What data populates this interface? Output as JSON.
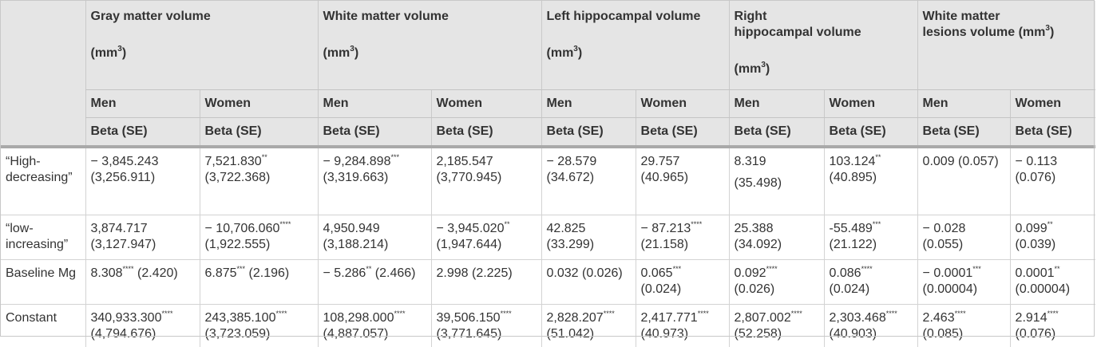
{
  "header": {
    "groups": [
      {
        "title": "Gray matter volume",
        "unit": "(mm",
        "unit_sup": "3",
        "unit_end": ")"
      },
      {
        "title": "White matter volume",
        "unit": "(mm",
        "unit_sup": "3",
        "unit_end": ")"
      },
      {
        "title": "Left hippocampal volume",
        "unit": "(mm",
        "unit_sup": "3",
        "unit_end": ")"
      },
      {
        "title_line1": "Right",
        "title_line2": "hippocampal volume",
        "unit": "(mm",
        "unit_sup": "3",
        "unit_end": ")"
      },
      {
        "title_line1": "White matter",
        "title_line2": "lesions volume (mm",
        "unit_sup": "3",
        "unit_end": ")"
      }
    ],
    "sex": [
      "Men",
      "Women",
      "Men",
      "Women",
      "Men",
      "Women",
      "Men",
      "Women",
      "Men",
      "Women"
    ],
    "stat": [
      "Beta (SE)",
      "Beta (SE)",
      "Beta (SE)",
      "Beta (SE)",
      "Beta (SE)",
      "Beta (SE)",
      "Beta (SE)",
      "Beta (SE)",
      "Beta (SE)",
      "Beta (SE)"
    ]
  },
  "rows": [
    {
      "label": "“High-decreasing”",
      "cells": [
        {
          "v": "− 3,845.243",
          "sig": "",
          "se": "(3,256.911)"
        },
        {
          "v": "7,521.830",
          "sig": "**",
          "se": "(3,722.368)"
        },
        {
          "v": "− 9,284.898",
          "sig": "***",
          "se": "(3,319.663)"
        },
        {
          "v": "2,185.547",
          "sig": "",
          "se": "(3,770.945)"
        },
        {
          "v": "− 28.579",
          "sig": "",
          "se": "(34.672)"
        },
        {
          "v": "29.757",
          "sig": "",
          "se": "(40.965)"
        },
        {
          "v": "8.319",
          "sig": "",
          "se": "(35.498)"
        },
        {
          "v": "103.124",
          "sig": "**",
          "se": "(40.895)"
        },
        {
          "v": "0.009 (0.057)",
          "sig": "",
          "se": ""
        },
        {
          "v": "− 0.113",
          "sig": "",
          "se": "(0.076)"
        }
      ]
    },
    {
      "label": "“low-increasing”",
      "cells": [
        {
          "v": "3,874.717",
          "sig": "",
          "se": "(3,127.947)"
        },
        {
          "v": "− 10,706.060",
          "sig": "****",
          "se": "(1,922.555)"
        },
        {
          "v": "4,950.949",
          "sig": "",
          "se": "(3,188.214)"
        },
        {
          "v": "− 3,945.020",
          "sig": "**",
          "se": "(1,947.644)"
        },
        {
          "v": "42.825",
          "sig": "",
          "se": "(33.299)"
        },
        {
          "v": "− 87.213",
          "sig": "****",
          "se": "(21.158)"
        },
        {
          "v": "25.388",
          "sig": "",
          "se": "(34.092)"
        },
        {
          "v": "-55.489",
          "sig": "***",
          "se": "(21.122)"
        },
        {
          "v": "− 0.028",
          "sig": "",
          "se": "(0.055)"
        },
        {
          "v": "0.099",
          "sig": "**",
          "se": "(0.039)"
        }
      ]
    },
    {
      "label": "Baseline Mg",
      "cells": [
        {
          "v": "8.308",
          "sig": "****",
          "se_inline": "(2.420)"
        },
        {
          "v": "6.875",
          "sig": "***",
          "se_inline": "(2.196)"
        },
        {
          "v": "− 5.286",
          "sig": "**",
          "se_inline": "(2.466)"
        },
        {
          "v": "2.998 (2.225)",
          "sig": "",
          "se": ""
        },
        {
          "v": "0.032 (0.026)",
          "sig": "",
          "se": ""
        },
        {
          "v": "0.065",
          "sig": "***",
          "se": "(0.024)"
        },
        {
          "v": "0.092",
          "sig": "****",
          "se": "(0.026)"
        },
        {
          "v": "0.086",
          "sig": "****",
          "se": "(0.024)"
        },
        {
          "v": "− 0.0001",
          "sig": "***",
          "se": "(0.00004)"
        },
        {
          "v": "0.0001",
          "sig": "**",
          "se": "(0.00004)"
        }
      ]
    },
    {
      "label": "Constant",
      "cells": [
        {
          "v": "340,933.300",
          "sig": "****",
          "se": "(4,794.676)"
        },
        {
          "v": "243,385.100",
          "sig": "****",
          "se": "(3,723.059)"
        },
        {
          "v": "108,298.000",
          "sig": "****",
          "se": "(4,887.057)"
        },
        {
          "v": "39,506.150",
          "sig": "****",
          "se": "(3,771.645)"
        },
        {
          "v": "2,828.207",
          "sig": "****",
          "se": "(51.042)"
        },
        {
          "v": "2,417.771",
          "sig": "****",
          "se": "(40.973)"
        },
        {
          "v": "2,807.002",
          "sig": "****",
          "se": "(52.258)"
        },
        {
          "v": "2,303.468",
          "sig": "****",
          "se": "(40.903)"
        },
        {
          "v": "2.463",
          "sig": "****",
          "se": "(0.085)"
        },
        {
          "v": "2.914",
          "sig": "****",
          "se": "(0.076)"
        }
      ]
    }
  ]
}
